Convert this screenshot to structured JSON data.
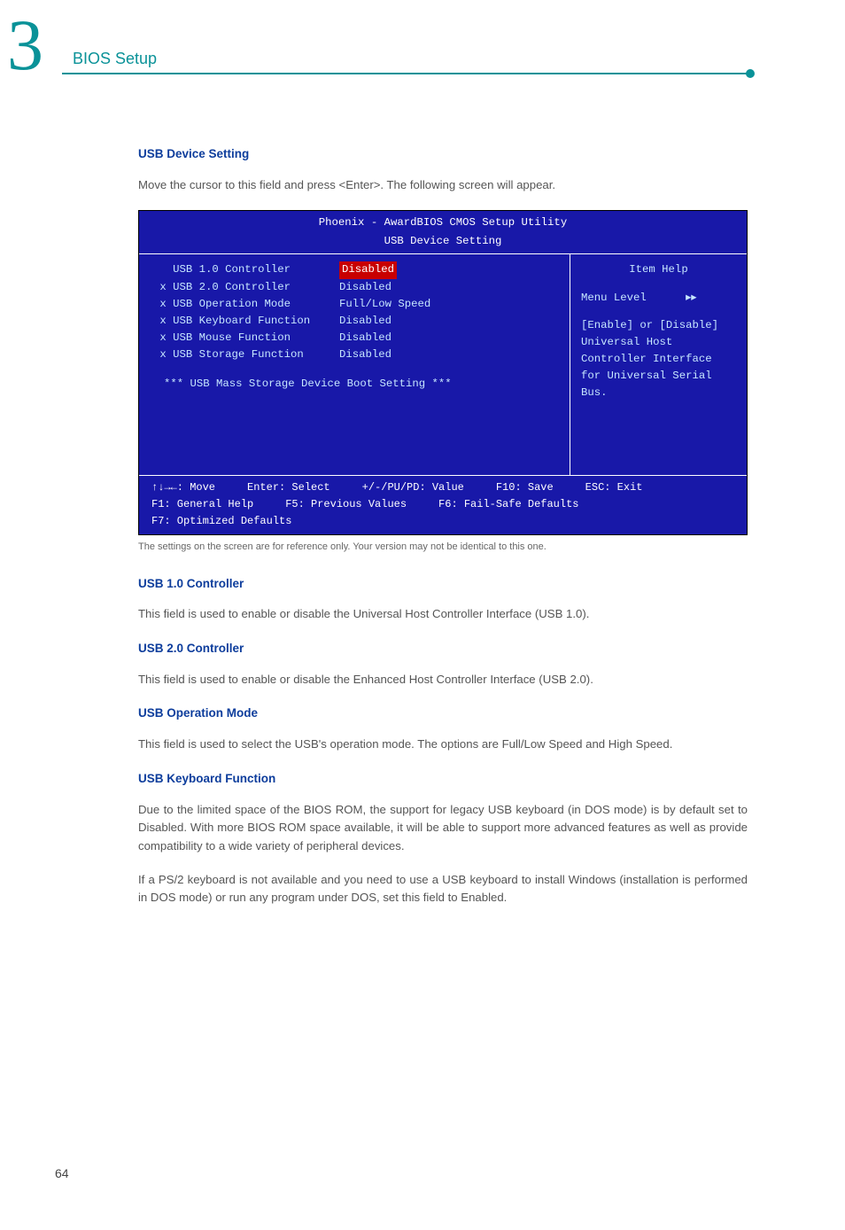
{
  "chapter_number": "3",
  "section_title": "BIOS Setup",
  "intro_heading": "USB Device Setting",
  "intro_paragraph": "Move the cursor to this field and press <Enter>. The following screen will appear.",
  "bios": {
    "title": "Phoenix - AwardBIOS CMOS Setup Utility",
    "subtitle": "USB Device Setting",
    "rows": [
      {
        "prefix": "   ",
        "label": "USB 1.0 Controller",
        "value": "Disabled",
        "highlighted": true
      },
      {
        "prefix": " x ",
        "label": "USB 2.0 Controller",
        "value": "Disabled",
        "highlighted": false
      },
      {
        "prefix": " x ",
        "label": "USB Operation Mode",
        "value": "Full/Low Speed",
        "highlighted": false
      },
      {
        "prefix": " x ",
        "label": "USB Keyboard Function",
        "value": "Disabled",
        "highlighted": false
      },
      {
        "prefix": " x ",
        "label": "USB Mouse Function",
        "value": "Disabled",
        "highlighted": false
      },
      {
        "prefix": " x ",
        "label": "USB Storage Function",
        "value": "Disabled",
        "highlighted": false
      }
    ],
    "mass_storage_line": "*** USB Mass Storage Device Boot Setting ***",
    "help_title": "Item Help",
    "menu_level_label": "Menu Level",
    "menu_level_arrows": "▸▸",
    "help_body": "[Enable] or [Disable] Universal Host Controller Interface for Universal Serial Bus.",
    "footer": {
      "move": "↑↓→←: Move",
      "select": "Enter: Select",
      "value": "+/-/PU/PD: Value",
      "save": "F10: Save",
      "exit": "ESC: Exit",
      "help": "F1: General Help",
      "prev": "F5: Previous Values",
      "failsafe": "F6: Fail-Safe Defaults",
      "optimized": "F7: Optimized Defaults"
    }
  },
  "caption": "The settings on the screen are for reference only. Your version may not be identical to this one.",
  "sections": [
    {
      "heading": "USB 1.0 Controller",
      "body": "This field is used to enable or disable the Universal Host Controller Interface (USB 1.0)."
    },
    {
      "heading": "USB 2.0 Controller",
      "body": "This field is used to enable or disable the Enhanced Host Controller Interface (USB 2.0)."
    },
    {
      "heading": "USB Operation Mode",
      "body": "This field is used to select the USB's operation mode. The options are Full/Low Speed and High Speed."
    },
    {
      "heading": "USB Keyboard Function",
      "body": "Due to the limited space of the BIOS ROM, the support for legacy USB keyboard (in DOS mode) is by default set to Disabled. With more BIOS ROM space available, it will be able to support more advanced features as well as provide compatibility to a wide variety of peripheral devices."
    }
  ],
  "extra_paragraph": "If a PS/2 keyboard is not available and you need to use a USB keyboard to install Windows (installation is performed in DOS mode) or run any program under DOS, set this field to Enabled.",
  "page_number": "64"
}
